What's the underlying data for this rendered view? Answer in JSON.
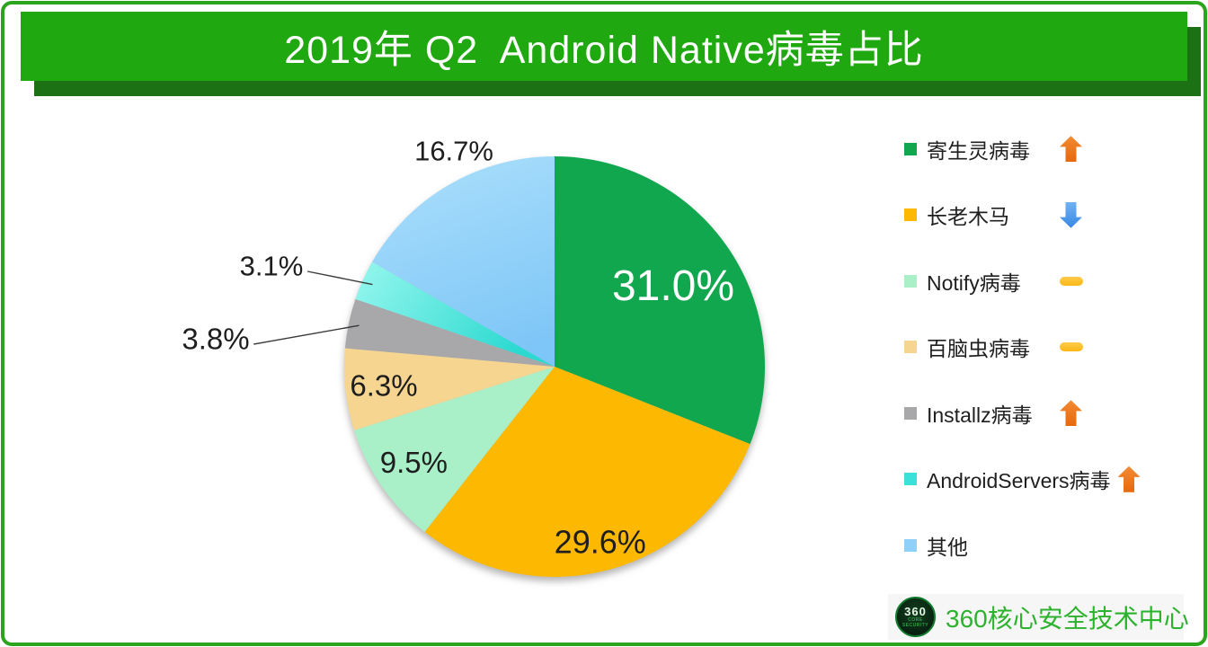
{
  "banner": {
    "title": "2019年 Q2  Android Native病毒占比",
    "bg_color": "#1FA80F",
    "shadow_color": "#1C7115",
    "text_color": "#FFFFFF"
  },
  "frame": {
    "border_color": "#2BA41E",
    "background": "#FFFFFF"
  },
  "chart_data": {
    "type": "pie",
    "title": "2019年 Q2  Android Native病毒占比",
    "legend_position": "right",
    "start_angle_deg": 0,
    "direction": "clockwise",
    "total": 100.0,
    "series": [
      {
        "name": "寄生灵病毒",
        "value": 31.0,
        "label": "31.0%",
        "color": "#10A74E",
        "trend": "up"
      },
      {
        "name": "长老木马",
        "value": 29.6,
        "label": "29.6%",
        "color": "#FDB801",
        "trend": "down"
      },
      {
        "name": "Notify病毒",
        "value": 9.5,
        "label": "9.5%",
        "color": "#A9EFC7",
        "trend": "flat"
      },
      {
        "name": "百脑虫病毒",
        "value": 6.3,
        "label": "6.3%",
        "color": "#F5D58F",
        "trend": "flat"
      },
      {
        "name": "Installz病毒",
        "value": 3.8,
        "label": "3.8%",
        "color": "#A8A8AA",
        "trend": "up"
      },
      {
        "name": "AndroidServers病毒",
        "value": 3.1,
        "label": "3.1%",
        "color": "#3BE0D9",
        "trend": "up"
      },
      {
        "name": "其他",
        "value": 16.7,
        "label": "16.7%",
        "color": "#8FD0F8",
        "trend": "none"
      }
    ],
    "trend_colors": {
      "up": "#E8680C",
      "down": "#3787E6",
      "flat": "#FCB814"
    }
  },
  "footer": {
    "logo_text": "360",
    "logo_subtext": "CORE SECURITY",
    "credit": "360核心安全技术中心",
    "credit_color": "#2DB22D",
    "box_bg": "#F6F6F6"
  }
}
